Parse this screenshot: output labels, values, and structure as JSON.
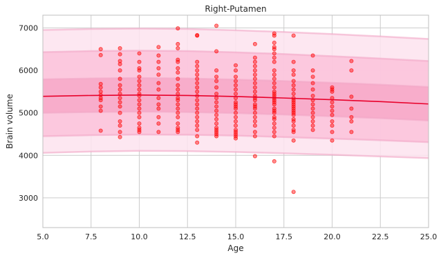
{
  "chart_data": {
    "type": "scatter",
    "title": "Right-Putamen",
    "xlabel": "Age",
    "ylabel": "Brain volume",
    "xlim": [
      5.0,
      25.0
    ],
    "ylim": [
      2300,
      7300
    ],
    "x_ticks": [
      5.0,
      7.5,
      10.0,
      12.5,
      15.0,
      17.5,
      20.0,
      22.5,
      25.0
    ],
    "x_tick_labels": [
      "5.0",
      "7.5",
      "10.0",
      "12.5",
      "15.0",
      "17.5",
      "20.0",
      "22.5",
      "25.0"
    ],
    "y_ticks": [
      3000,
      4000,
      5000,
      6000,
      7000
    ],
    "y_tick_labels": [
      "3000",
      "4000",
      "5000",
      "6000",
      "7000"
    ],
    "grid": true,
    "legend": "none",
    "colors": {
      "points": "#ff0000",
      "mean_line": "#e8002a",
      "band_inner": "#f7a8c8",
      "band_middle": "#fbc2da",
      "band_outer": "#fde3ee",
      "band_edge": "#f2a6c6",
      "grid": "#cccccc",
      "frame": "#bfbfbf"
    },
    "mean_curve": {
      "x": [
        5,
        7.5,
        10,
        12.5,
        15,
        17.5,
        20,
        22.5,
        25
      ],
      "y": [
        5390,
        5410,
        5420,
        5410,
        5385,
        5350,
        5310,
        5265,
        5210
      ]
    },
    "centile_bands": [
      {
        "x": [
          5,
          7.5,
          10,
          12.5,
          15,
          17.5,
          20,
          22.5,
          25
        ],
        "lower": [
          4060,
          4090,
          4105,
          4100,
          4080,
          4050,
          4015,
          3975,
          3935
        ],
        "upper": [
          6950,
          6975,
          6985,
          6975,
          6945,
          6905,
          6855,
          6800,
          6740
        ]
      },
      {
        "x": [
          5,
          7.5,
          10,
          12.5,
          15,
          17.5,
          20,
          22.5,
          25
        ],
        "lower": [
          4450,
          4475,
          4490,
          4485,
          4465,
          4430,
          4395,
          4355,
          4310
        ],
        "upper": [
          6430,
          6455,
          6465,
          6455,
          6425,
          6385,
          6335,
          6280,
          6220
        ]
      },
      {
        "x": [
          5,
          7.5,
          10,
          12.5,
          15,
          17.5,
          20,
          22.5,
          25
        ],
        "lower": [
          5000,
          5020,
          5030,
          5020,
          4995,
          4960,
          4920,
          4875,
          4820
        ],
        "upper": [
          5790,
          5810,
          5820,
          5810,
          5785,
          5750,
          5710,
          5665,
          5610
        ]
      }
    ],
    "points": {
      "x": [
        8,
        8,
        8,
        8,
        8,
        8,
        8,
        8,
        8,
        8,
        8,
        9,
        9,
        9,
        9,
        9,
        9,
        9,
        9,
        9,
        9,
        9,
        9,
        9,
        9,
        9,
        9,
        9,
        10,
        10,
        10,
        10,
        10,
        10,
        10,
        10,
        10,
        10,
        10,
        10,
        10,
        10,
        10,
        10,
        10,
        10,
        10,
        11,
        11,
        11,
        11,
        11,
        11,
        11,
        11,
        11,
        11,
        11,
        11,
        11,
        12,
        12,
        12,
        12,
        12,
        12,
        12,
        12,
        12,
        12,
        12,
        12,
        12,
        12,
        12,
        12,
        12,
        12,
        12,
        12,
        12,
        13,
        13,
        13,
        13,
        13,
        13,
        13,
        13,
        13,
        13,
        13,
        13,
        13,
        13,
        13,
        13,
        13,
        13,
        13,
        13,
        13,
        14,
        14,
        14,
        14,
        14,
        14,
        14,
        14,
        14,
        14,
        14,
        14,
        14,
        14,
        14,
        14,
        14,
        14,
        14,
        15,
        15,
        15,
        15,
        15,
        15,
        15,
        15,
        15,
        15,
        15,
        15,
        15,
        15,
        15,
        15,
        15,
        15,
        15,
        15,
        15,
        16,
        16,
        16,
        16,
        16,
        16,
        16,
        16,
        16,
        16,
        16,
        16,
        16,
        16,
        16,
        16,
        16,
        16,
        16,
        16,
        16,
        16,
        16,
        17,
        17,
        17,
        17,
        17,
        17,
        17,
        17,
        17,
        17,
        17,
        17,
        17,
        17,
        17,
        17,
        17,
        17,
        17,
        17,
        17,
        17,
        17,
        17,
        17,
        17,
        17,
        17,
        17,
        17,
        18,
        18,
        18,
        18,
        18,
        18,
        18,
        18,
        18,
        18,
        18,
        18,
        18,
        18,
        18,
        18,
        18,
        18,
        18,
        18,
        18,
        18,
        18,
        18,
        19,
        19,
        19,
        19,
        19,
        19,
        19,
        19,
        19,
        19,
        19,
        19,
        19,
        19,
        20,
        20,
        20,
        20,
        20,
        20,
        20,
        20,
        20,
        20,
        20,
        20,
        21,
        21,
        21,
        21,
        21,
        21,
        21
      ],
      "y": [
        6500,
        6360,
        5680,
        5600,
        5500,
        5420,
        5350,
        5300,
        5150,
        5050,
        4580,
        6520,
        6380,
        6220,
        6150,
        6000,
        5800,
        5650,
        5550,
        5450,
        5350,
        5250,
        5150,
        5000,
        4800,
        4700,
        4550,
        4430,
        6400,
        6200,
        6050,
        6000,
        5850,
        5750,
        5650,
        5550,
        5450,
        5400,
        5300,
        5200,
        5100,
        5000,
        4900,
        4750,
        4650,
        4600,
        4550,
        6550,
        6350,
        6200,
        6050,
        5900,
        5700,
        5550,
        5350,
        5200,
        5100,
        4900,
        4750,
        4550,
        6990,
        6620,
        6520,
        6250,
        6200,
        6050,
        5950,
        5800,
        5650,
        5550,
        5450,
        5350,
        5300,
        5200,
        5100,
        5000,
        4900,
        4750,
        4650,
        4600,
        4550,
        6830,
        6820,
        6200,
        6100,
        6000,
        5900,
        5800,
        5700,
        5600,
        5500,
        5400,
        5300,
        5200,
        5100,
        5000,
        4900,
        4800,
        4700,
        4600,
        4450,
        4300,
        7050,
        6450,
        6000,
        5850,
        5750,
        5600,
        5450,
        5350,
        5250,
        5150,
        5050,
        4950,
        4850,
        4750,
        4650,
        4600,
        4550,
        4500,
        4450,
        6120,
        6000,
        5850,
        5750,
        5650,
        5550,
        5450,
        5350,
        5250,
        5200,
        5150,
        5100,
        5000,
        4900,
        4800,
        4700,
        4600,
        4550,
        4500,
        4450,
        4400,
        6620,
        6300,
        6200,
        6100,
        6000,
        5900,
        5800,
        5700,
        5600,
        5500,
        5400,
        5350,
        5300,
        5200,
        5150,
        5100,
        5000,
        4900,
        4800,
        4700,
        4550,
        4450,
        3980,
        6870,
        6820,
        6650,
        6550,
        6500,
        6400,
        6300,
        6200,
        6000,
        5900,
        5800,
        5700,
        5600,
        5500,
        5450,
        5400,
        5350,
        5300,
        5250,
        5200,
        5100,
        5050,
        5000,
        4900,
        4850,
        4750,
        4650,
        4550,
        4450,
        3860,
        6820,
        6200,
        6000,
        5900,
        5750,
        5650,
        5550,
        5450,
        5350,
        5300,
        5250,
        5200,
        5150,
        5100,
        5050,
        5000,
        4950,
        4850,
        4800,
        4700,
        4600,
        4550,
        4350,
        3140,
        6350,
        6000,
        5850,
        5700,
        5550,
        5400,
        5300,
        5200,
        5100,
        5000,
        4900,
        4800,
        4700,
        4600,
        5600,
        5550,
        5500,
        5350,
        5250,
        5150,
        5050,
        4950,
        4800,
        4700,
        4550,
        4350,
        6220,
        6000,
        5380,
        5100,
        4900,
        4800,
        4550
      ]
    }
  }
}
